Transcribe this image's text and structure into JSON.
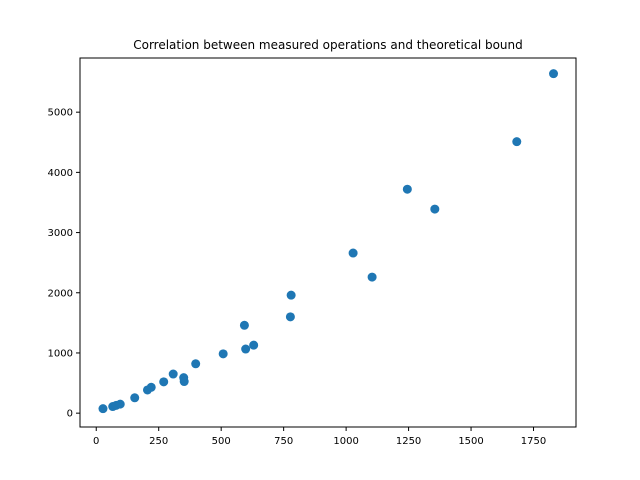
{
  "chart_data": {
    "type": "scatter",
    "title": "Correlation between measured operations and theoretical bound",
    "xlabel": "",
    "ylabel": "",
    "xlim": [
      -65,
      1920
    ],
    "ylim": [
      -230,
      5900
    ],
    "xticks": [
      0,
      250,
      500,
      750,
      1000,
      1250,
      1500,
      1750
    ],
    "yticks": [
      0,
      1000,
      2000,
      3000,
      4000,
      5000
    ],
    "grid": false,
    "marker_color": "#1f77b4",
    "points": [
      {
        "x": 27,
        "y": 75
      },
      {
        "x": 66,
        "y": 110
      },
      {
        "x": 80,
        "y": 130
      },
      {
        "x": 96,
        "y": 150
      },
      {
        "x": 154,
        "y": 255
      },
      {
        "x": 205,
        "y": 385
      },
      {
        "x": 220,
        "y": 430
      },
      {
        "x": 270,
        "y": 520
      },
      {
        "x": 308,
        "y": 650
      },
      {
        "x": 350,
        "y": 590
      },
      {
        "x": 352,
        "y": 525
      },
      {
        "x": 398,
        "y": 820
      },
      {
        "x": 508,
        "y": 985
      },
      {
        "x": 593,
        "y": 1460
      },
      {
        "x": 598,
        "y": 1065
      },
      {
        "x": 630,
        "y": 1130
      },
      {
        "x": 777,
        "y": 1600
      },
      {
        "x": 780,
        "y": 1960
      },
      {
        "x": 1028,
        "y": 2660
      },
      {
        "x": 1104,
        "y": 2260
      },
      {
        "x": 1245,
        "y": 3720
      },
      {
        "x": 1355,
        "y": 3390
      },
      {
        "x": 1683,
        "y": 4510
      },
      {
        "x": 1830,
        "y": 5640
      }
    ]
  }
}
